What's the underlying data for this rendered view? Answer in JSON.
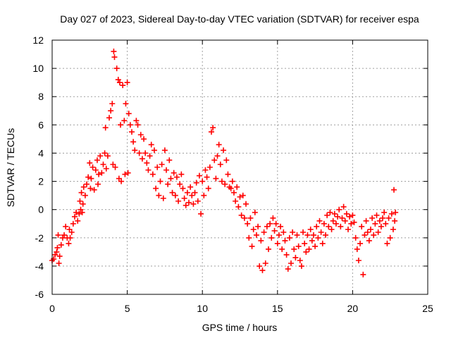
{
  "chart_data": {
    "type": "scatter",
    "title": "Day 027 of 2023, Sidereal Day-to-day VTEC variation (SDTVAR) for receiver espa",
    "xlabel": "GPS time / hours",
    "ylabel": "SDTVAR / TECUs",
    "xlim": [
      0,
      25
    ],
    "ylim": [
      -6,
      12
    ],
    "xticks": [
      0,
      5,
      10,
      15,
      20,
      25
    ],
    "yticks": [
      -6,
      -4,
      -2,
      0,
      2,
      4,
      6,
      8,
      10,
      12
    ],
    "grid": true,
    "marker": "+",
    "color": "#ff0000",
    "series": [
      {
        "name": "SDTVAR",
        "points": [
          [
            0.0,
            -3.6
          ],
          [
            0.1,
            -3.5
          ],
          [
            0.2,
            -3.2
          ],
          [
            0.3,
            -3.0
          ],
          [
            0.35,
            -2.7
          ],
          [
            0.4,
            -1.8
          ],
          [
            0.45,
            -3.8
          ],
          [
            0.5,
            -3.3
          ],
          [
            0.6,
            -2.5
          ],
          [
            0.7,
            -2.0
          ],
          [
            0.8,
            -1.8
          ],
          [
            0.9,
            -1.2
          ],
          [
            1.0,
            -2.0
          ],
          [
            1.1,
            -2.4
          ],
          [
            1.15,
            -1.4
          ],
          [
            1.2,
            -2.0
          ],
          [
            1.3,
            -1.6
          ],
          [
            1.4,
            -1.0
          ],
          [
            1.5,
            -0.5
          ],
          [
            1.6,
            -0.2
          ],
          [
            1.7,
            -0.8
          ],
          [
            1.8,
            -0.3
          ],
          [
            1.85,
            0.6
          ],
          [
            1.9,
            0.0
          ],
          [
            1.95,
            1.2
          ],
          [
            2.0,
            -0.2
          ],
          [
            2.05,
            0.4
          ],
          [
            2.1,
            1.6
          ],
          [
            2.2,
            1.0
          ],
          [
            2.3,
            1.8
          ],
          [
            2.4,
            2.3
          ],
          [
            2.5,
            3.3
          ],
          [
            2.55,
            1.5
          ],
          [
            2.6,
            2.2
          ],
          [
            2.7,
            3.0
          ],
          [
            2.8,
            1.4
          ],
          [
            2.9,
            2.8
          ],
          [
            3.0,
            3.5
          ],
          [
            3.05,
            1.8
          ],
          [
            3.1,
            2.5
          ],
          [
            3.2,
            3.8
          ],
          [
            3.3,
            2.6
          ],
          [
            3.4,
            3.2
          ],
          [
            3.5,
            4.0
          ],
          [
            3.55,
            5.8
          ],
          [
            3.6,
            2.9
          ],
          [
            3.7,
            3.8
          ],
          [
            3.8,
            6.5
          ],
          [
            3.9,
            7.0
          ],
          [
            4.0,
            7.5
          ],
          [
            4.05,
            3.2
          ],
          [
            4.1,
            11.2
          ],
          [
            4.15,
            10.8
          ],
          [
            4.2,
            3.0
          ],
          [
            4.3,
            10.0
          ],
          [
            4.4,
            9.2
          ],
          [
            4.45,
            2.2
          ],
          [
            4.5,
            9.0
          ],
          [
            4.55,
            6.0
          ],
          [
            4.6,
            2.0
          ],
          [
            4.7,
            8.8
          ],
          [
            4.8,
            6.3
          ],
          [
            4.85,
            2.5
          ],
          [
            4.9,
            7.5
          ],
          [
            5.0,
            9.0
          ],
          [
            5.05,
            2.6
          ],
          [
            5.1,
            6.8
          ],
          [
            5.2,
            6.0
          ],
          [
            5.3,
            5.5
          ],
          [
            5.4,
            4.8
          ],
          [
            5.5,
            4.2
          ],
          [
            5.6,
            6.3
          ],
          [
            5.7,
            6.0
          ],
          [
            5.8,
            4.0
          ],
          [
            5.9,
            5.3
          ],
          [
            6.0,
            3.6
          ],
          [
            6.1,
            5.0
          ],
          [
            6.2,
            4.0
          ],
          [
            6.3,
            3.3
          ],
          [
            6.4,
            2.8
          ],
          [
            6.5,
            3.8
          ],
          [
            6.6,
            4.6
          ],
          [
            6.7,
            2.5
          ],
          [
            6.8,
            4.2
          ],
          [
            6.9,
            1.5
          ],
          [
            7.0,
            3.0
          ],
          [
            7.1,
            1.0
          ],
          [
            7.2,
            2.0
          ],
          [
            7.3,
            3.2
          ],
          [
            7.4,
            0.8
          ],
          [
            7.5,
            4.2
          ],
          [
            7.6,
            2.8
          ],
          [
            7.7,
            1.8
          ],
          [
            7.8,
            3.5
          ],
          [
            7.9,
            2.2
          ],
          [
            8.0,
            1.2
          ],
          [
            8.1,
            2.6
          ],
          [
            8.2,
            1.0
          ],
          [
            8.3,
            2.3
          ],
          [
            8.4,
            0.6
          ],
          [
            8.5,
            1.8
          ],
          [
            8.6,
            2.5
          ],
          [
            8.7,
            1.5
          ],
          [
            8.8,
            0.8
          ],
          [
            8.9,
            0.3
          ],
          [
            9.0,
            1.2
          ],
          [
            9.1,
            0.5
          ],
          [
            9.2,
            1.6
          ],
          [
            9.3,
            1.0
          ],
          [
            9.4,
            0.4
          ],
          [
            9.5,
            1.2
          ],
          [
            9.6,
            1.9
          ],
          [
            9.7,
            0.6
          ],
          [
            9.8,
            2.4
          ],
          [
            9.9,
            -0.3
          ],
          [
            10.0,
            2.0
          ],
          [
            10.1,
            1.0
          ],
          [
            10.2,
            2.8
          ],
          [
            10.3,
            2.3
          ],
          [
            10.4,
            1.5
          ],
          [
            10.5,
            3.0
          ],
          [
            10.6,
            5.5
          ],
          [
            10.7,
            5.8
          ],
          [
            10.8,
            3.5
          ],
          [
            10.9,
            2.2
          ],
          [
            11.0,
            3.8
          ],
          [
            11.1,
            4.6
          ],
          [
            11.2,
            3.2
          ],
          [
            11.3,
            2.0
          ],
          [
            11.4,
            4.2
          ],
          [
            11.5,
            1.8
          ],
          [
            11.6,
            3.5
          ],
          [
            11.7,
            2.5
          ],
          [
            11.8,
            1.6
          ],
          [
            11.9,
            1.5
          ],
          [
            12.0,
            2.0
          ],
          [
            12.1,
            1.2
          ],
          [
            12.2,
            0.6
          ],
          [
            12.3,
            1.6
          ],
          [
            12.4,
            0.2
          ],
          [
            12.5,
            0.9
          ],
          [
            12.6,
            -0.4
          ],
          [
            12.7,
            1.0
          ],
          [
            12.8,
            -0.6
          ],
          [
            12.9,
            0.4
          ],
          [
            13.0,
            -1.0
          ],
          [
            13.1,
            -2.0
          ],
          [
            13.2,
            -0.6
          ],
          [
            13.3,
            -2.6
          ],
          [
            13.4,
            -1.4
          ],
          [
            13.5,
            -0.2
          ],
          [
            13.6,
            -1.8
          ],
          [
            13.7,
            -1.2
          ],
          [
            13.8,
            -4.0
          ],
          [
            13.9,
            -2.2
          ],
          [
            14.0,
            -4.3
          ],
          [
            14.1,
            -1.6
          ],
          [
            14.2,
            -3.8
          ],
          [
            14.3,
            -1.2
          ],
          [
            14.4,
            -2.8
          ],
          [
            14.5,
            -1.0
          ],
          [
            14.6,
            -2.0
          ],
          [
            14.7,
            -0.6
          ],
          [
            14.8,
            -1.5
          ],
          [
            14.9,
            -1.0
          ],
          [
            15.0,
            -2.4
          ],
          [
            15.1,
            -1.8
          ],
          [
            15.2,
            -1.2
          ],
          [
            15.3,
            -2.8
          ],
          [
            15.4,
            -1.6
          ],
          [
            15.5,
            -2.2
          ],
          [
            15.6,
            -3.2
          ],
          [
            15.7,
            -4.2
          ],
          [
            15.8,
            -2.0
          ],
          [
            15.9,
            -3.8
          ],
          [
            16.0,
            -1.6
          ],
          [
            16.1,
            -2.8
          ],
          [
            16.2,
            -3.4
          ],
          [
            16.3,
            -1.8
          ],
          [
            16.4,
            -2.6
          ],
          [
            16.5,
            -3.6
          ],
          [
            16.6,
            -4.0
          ],
          [
            16.7,
            -1.6
          ],
          [
            16.8,
            -2.4
          ],
          [
            16.9,
            -3.0
          ],
          [
            17.0,
            -1.8
          ],
          [
            17.1,
            -2.8
          ],
          [
            17.2,
            -1.4
          ],
          [
            17.3,
            -2.2
          ],
          [
            17.4,
            -1.8
          ],
          [
            17.5,
            -2.6
          ],
          [
            17.6,
            -1.2
          ],
          [
            17.7,
            -2.0
          ],
          [
            17.8,
            -0.8
          ],
          [
            17.9,
            -1.6
          ],
          [
            18.0,
            -2.4
          ],
          [
            18.1,
            -1.0
          ],
          [
            18.2,
            -1.8
          ],
          [
            18.3,
            -0.4
          ],
          [
            18.4,
            -1.2
          ],
          [
            18.5,
            -0.2
          ],
          [
            18.6,
            -1.4
          ],
          [
            18.7,
            -0.8
          ],
          [
            18.8,
            -0.3
          ],
          [
            18.9,
            -1.0
          ],
          [
            19.0,
            -0.5
          ],
          [
            19.1,
            0.0
          ],
          [
            19.2,
            -1.2
          ],
          [
            19.3,
            -0.6
          ],
          [
            19.4,
            0.2
          ],
          [
            19.5,
            -0.8
          ],
          [
            19.6,
            -0.3
          ],
          [
            19.7,
            -1.4
          ],
          [
            19.8,
            -0.5
          ],
          [
            19.9,
            -1.0
          ],
          [
            20.0,
            -0.4
          ],
          [
            20.1,
            -0.9
          ],
          [
            20.2,
            -2.0
          ],
          [
            20.3,
            -2.8
          ],
          [
            20.4,
            -3.6
          ],
          [
            20.5,
            -2.4
          ],
          [
            20.6,
            -1.2
          ],
          [
            20.7,
            -4.6
          ],
          [
            20.8,
            -1.8
          ],
          [
            20.9,
            -0.8
          ],
          [
            21.0,
            -1.6
          ],
          [
            21.1,
            -2.2
          ],
          [
            21.2,
            -1.4
          ],
          [
            21.3,
            -0.6
          ],
          [
            21.4,
            -1.8
          ],
          [
            21.5,
            -1.0
          ],
          [
            21.6,
            -0.4
          ],
          [
            21.7,
            -1.6
          ],
          [
            21.8,
            -0.8
          ],
          [
            21.9,
            -1.2
          ],
          [
            22.0,
            -0.6
          ],
          [
            22.1,
            -0.2
          ],
          [
            22.2,
            -1.0
          ],
          [
            22.3,
            -2.4
          ],
          [
            22.4,
            -0.6
          ],
          [
            22.5,
            -2.0
          ],
          [
            22.6,
            -0.3
          ],
          [
            22.7,
            -1.4
          ],
          [
            22.75,
            1.4
          ],
          [
            22.8,
            -0.8
          ],
          [
            22.85,
            -0.2
          ]
        ]
      }
    ]
  }
}
